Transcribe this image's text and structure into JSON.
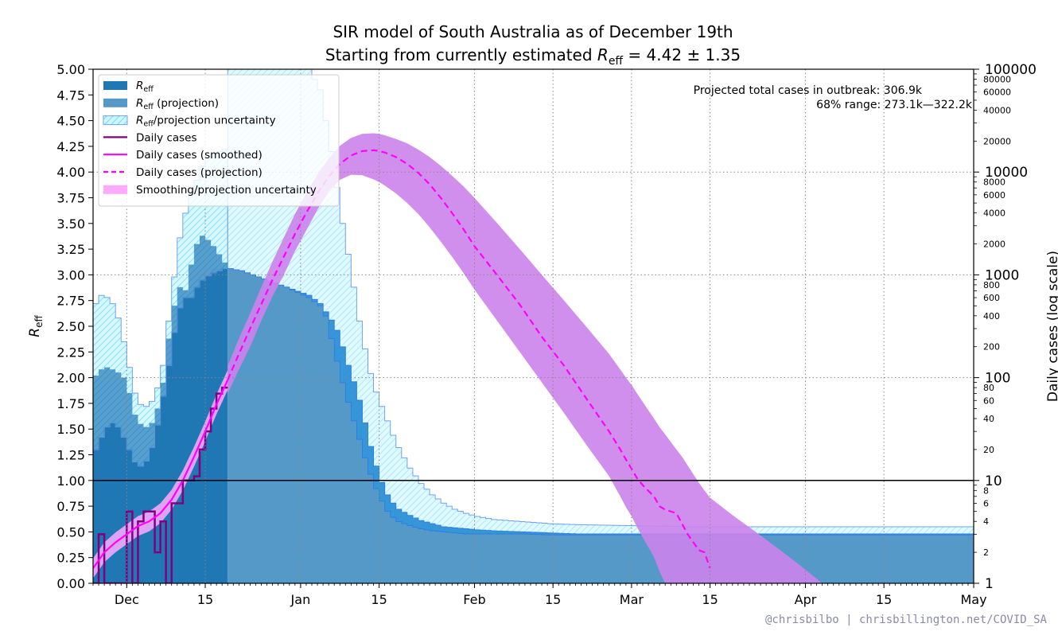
{
  "chart_data": {
    "type": "area",
    "title_line1": "SIR model of South Australia as of December 19th",
    "title_line2_prefix": "Starting from currently estimated ",
    "title_line2_symbol": "R",
    "title_line2_sub": "eff",
    "title_line2_suffix": " = 4.42 ± 1.35",
    "ylabel_left_symbol": "R",
    "ylabel_left_sub": "eff",
    "ylabel_right": "Daily cases (log scale)",
    "x_ticks": [
      {
        "day": 0,
        "label": "Dec"
      },
      {
        "day": 14,
        "label": "15"
      },
      {
        "day": 31,
        "label": "Jan"
      },
      {
        "day": 45,
        "label": "15"
      },
      {
        "day": 62,
        "label": "Feb"
      },
      {
        "day": 76,
        "label": "15"
      },
      {
        "day": 90,
        "label": "Mar"
      },
      {
        "day": 104,
        "label": "15"
      },
      {
        "day": 121,
        "label": "Apr"
      },
      {
        "day": 135,
        "label": "15"
      },
      {
        "day": 151,
        "label": "May"
      }
    ],
    "xlim_day": [
      -6,
      151
    ],
    "ylim_left": [
      0,
      5
    ],
    "y_ticks_left": [
      "0.00",
      "0.25",
      "0.50",
      "0.75",
      "1.00",
      "1.25",
      "1.50",
      "1.75",
      "2.00",
      "2.25",
      "2.50",
      "2.75",
      "3.00",
      "3.25",
      "3.50",
      "3.75",
      "4.00",
      "4.25",
      "4.50",
      "4.75",
      "5.00"
    ],
    "ylim_right_log": [
      1,
      100000
    ],
    "y_major_right": [
      "1",
      "10",
      "100",
      "1000",
      "10000",
      "100000"
    ],
    "y_minor_right": [
      {
        "v": 2,
        "l": "2"
      },
      {
        "v": 4,
        "l": "4"
      },
      {
        "v": 6,
        "l": "6"
      },
      {
        "v": 8,
        "l": "8"
      },
      {
        "v": 20,
        "l": "20"
      },
      {
        "v": 40,
        "l": "40"
      },
      {
        "v": 60,
        "l": "60"
      },
      {
        "v": 80,
        "l": "80"
      },
      {
        "v": 200,
        "l": "200"
      },
      {
        "v": 400,
        "l": "400"
      },
      {
        "v": 600,
        "l": "600"
      },
      {
        "v": 800,
        "l": "800"
      },
      {
        "v": 2000,
        "l": "2000"
      },
      {
        "v": 4000,
        "l": "4000"
      },
      {
        "v": 6000,
        "l": "6000"
      },
      {
        "v": 8000,
        "l": "8000"
      },
      {
        "v": 20000,
        "l": "20000"
      },
      {
        "v": 40000,
        "l": "40000"
      },
      {
        "v": 60000,
        "l": "60000"
      },
      {
        "v": 80000,
        "l": "80000"
      }
    ],
    "reference_line_reff": 1.0,
    "annotation_line1": "Projected total cases in outbreak:  306.9k",
    "annotation_line2": "68% range:  273.1k—322.2k",
    "watermark": "@chrisbilbo | chrisbillington.net/COVID_SA",
    "legend_position": "upper-left",
    "legend": [
      {
        "kind": "patch",
        "color": "#1f77b4",
        "symbol": "R",
        "sub": "eff",
        "text": ""
      },
      {
        "kind": "patch",
        "color": "#5599c9",
        "symbol": "R",
        "sub": "eff",
        "text": " (projection)"
      },
      {
        "kind": "hatch",
        "color": "#ccf8ff",
        "symbol": "R",
        "sub": "eff",
        "text": "/projection uncertainty"
      },
      {
        "kind": "line",
        "color": "#800080",
        "dash": false,
        "text": "Daily cases"
      },
      {
        "kind": "line",
        "color": "#ff00ff",
        "dash": false,
        "text": "Daily cases (smoothed)"
      },
      {
        "kind": "line",
        "color": "#ff00ff",
        "dash": true,
        "text": "Daily cases (projection)"
      },
      {
        "kind": "patch",
        "color": "#ffaaff",
        "text": "Smoothing/projection uncertainty"
      }
    ],
    "colors": {
      "reff": "#1f77b4",
      "reff_projection": "#5599c9",
      "reff_band_edge": "#2e7fe0",
      "uncertainty_hatch_fill": "#ccf8ff",
      "uncertainty_hatch_edge": "#6fa3f0",
      "daily_cases": "#800080",
      "smoothed": "#ff00ff",
      "cases_uncertainty": "#ffaaff",
      "overlap": "#8866d8"
    },
    "reff_series": {
      "name": "Reff",
      "days": [
        -6,
        -5,
        -4,
        -3,
        -2,
        -1,
        0,
        1,
        2,
        3,
        4,
        5,
        6,
        7,
        8,
        9,
        10,
        11,
        12,
        13,
        14,
        15,
        16,
        17
      ],
      "values": [
        2.02,
        2.08,
        2.1,
        2.08,
        2.05,
        2.0,
        1.85,
        1.64,
        1.55,
        1.52,
        1.56,
        1.7,
        1.95,
        2.38,
        2.7,
        2.88,
        2.85,
        3.1,
        3.3,
        3.38,
        3.34,
        3.28,
        3.2,
        3.12
      ],
      "lower": [
        1.3,
        1.42,
        1.52,
        1.56,
        1.52,
        1.42,
        1.3,
        1.18,
        1.14,
        1.19,
        1.32,
        1.54,
        1.82,
        2.12,
        2.44,
        2.68,
        2.78,
        2.78,
        2.88,
        2.95,
        2.99,
        3.02,
        3.04,
        3.06
      ],
      "upper": [
        2.72,
        2.8,
        2.78,
        2.72,
        2.58,
        2.35,
        2.1,
        1.85,
        1.74,
        1.72,
        1.77,
        1.9,
        2.12,
        2.55,
        2.98,
        3.36,
        3.6,
        3.78,
        3.92,
        4.06,
        4.15,
        4.18,
        4.2,
        4.22
      ]
    },
    "reff_projection": {
      "name": "Reff (projection)",
      "days": [
        18,
        20,
        22,
        24,
        26,
        28,
        30,
        32,
        34,
        35,
        36,
        37,
        38,
        39,
        40,
        41,
        42,
        43,
        44,
        45,
        46,
        47,
        48,
        50,
        52,
        54,
        56,
        58,
        60,
        62,
        65,
        70,
        75,
        80,
        90,
        100,
        110,
        120,
        130,
        140,
        151
      ],
      "values": [
        3.06,
        3.04,
        3.0,
        2.96,
        2.92,
        2.88,
        2.83,
        2.78,
        2.7,
        2.64,
        2.56,
        2.46,
        2.3,
        2.12,
        1.96,
        1.78,
        1.56,
        1.33,
        1.14,
        0.98,
        0.86,
        0.78,
        0.72,
        0.66,
        0.61,
        0.58,
        0.55,
        0.54,
        0.53,
        0.52,
        0.51,
        0.5,
        0.49,
        0.48,
        0.48,
        0.48,
        0.48,
        0.48,
        0.48,
        0.48,
        0.48
      ],
      "lower": [
        3.06,
        3.04,
        3.0,
        2.96,
        2.92,
        2.88,
        2.84,
        2.8,
        2.72,
        2.6,
        2.38,
        2.16,
        1.95,
        1.76,
        1.58,
        1.4,
        1.22,
        1.06,
        0.92,
        0.8,
        0.7,
        0.64,
        0.6,
        0.56,
        0.53,
        0.51,
        0.5,
        0.49,
        0.48,
        0.48,
        0.48,
        0.48,
        0.47,
        0.47,
        0.47,
        0.47,
        0.47,
        0.47,
        0.47,
        0.47,
        0.47
      ],
      "upper": [
        5.0,
        5.0,
        5.0,
        5.0,
        5.0,
        5.0,
        5.0,
        5.0,
        4.8,
        4.5,
        4.2,
        3.85,
        3.5,
        3.2,
        2.88,
        2.55,
        2.28,
        2.04,
        1.86,
        1.72,
        1.58,
        1.44,
        1.32,
        1.12,
        0.97,
        0.86,
        0.78,
        0.72,
        0.68,
        0.65,
        0.62,
        0.6,
        0.58,
        0.57,
        0.56,
        0.55,
        0.55,
        0.55,
        0.55,
        0.55,
        0.55
      ]
    },
    "daily_cases": {
      "name": "Daily cases",
      "days": [
        -6,
        -5,
        -4,
        -3,
        -2,
        -1,
        0,
        1,
        2,
        3,
        4,
        5,
        6,
        7,
        8,
        9,
        10,
        11,
        12,
        13,
        14,
        15,
        16,
        17
      ],
      "values": [
        1,
        3,
        1,
        1,
        1,
        1,
        5,
        1,
        4,
        5,
        5,
        2,
        4,
        1,
        6,
        6,
        10,
        10,
        11,
        20,
        30,
        50,
        70,
        80
      ]
    },
    "smoothed_cases": {
      "name": "Daily cases (smoothed)",
      "days": [
        -6,
        -4,
        -2,
        0,
        2,
        4,
        6,
        8,
        10,
        12,
        14,
        16,
        18
      ],
      "values": [
        1.4,
        2.0,
        2.5,
        3.0,
        3.6,
        4.0,
        4.8,
        6.5,
        10,
        17,
        30,
        55,
        95
      ]
    },
    "projected_cases": {
      "name": "Daily cases (projection)",
      "days": [
        18,
        20,
        22,
        24,
        26,
        28,
        30,
        32,
        34,
        36,
        38,
        40,
        42,
        44,
        45,
        46,
        48,
        50,
        52,
        54,
        56,
        58,
        60,
        62,
        66,
        70,
        74,
        78,
        82,
        86,
        88,
        89,
        90,
        91,
        92,
        94,
        95,
        96,
        98,
        99,
        100,
        102,
        103,
        104
      ],
      "values": [
        95,
        170,
        300,
        520,
        900,
        1500,
        2500,
        4000,
        6200,
        9000,
        12000,
        14500,
        16000,
        16300,
        16000,
        15500,
        14000,
        12000,
        9800,
        7600,
        5600,
        4000,
        2800,
        1900,
        1000,
        520,
        250,
        130,
        62,
        30,
        20,
        16,
        13,
        10.5,
        9,
        7,
        5.6,
        5.2,
        4.8,
        3.8,
        3.0,
        2.1,
        2.0,
        1.4
      ],
      "lower": [
        70,
        120,
        200,
        360,
        620,
        1000,
        1700,
        2700,
        4300,
        6400,
        8400,
        9400,
        9300,
        8500,
        8000,
        7400,
        6200,
        5000,
        3900,
        2900,
        2100,
        1500,
        1050,
        720,
        360,
        180,
        90,
        45,
        22,
        11,
        7,
        5.5,
        4.5,
        3.5,
        2.8,
        1.8,
        1.3,
        1.0,
        1.0,
        1.0,
        1.0,
        1.0,
        1.0,
        1.0
      ],
      "upper": [
        130,
        240,
        420,
        760,
        1350,
        2300,
        3900,
        6200,
        9500,
        13500,
        18000,
        21500,
        23500,
        23800,
        23500,
        22800,
        21000,
        19000,
        16500,
        14000,
        11500,
        9200,
        7300,
        5600,
        3200,
        1800,
        1000,
        560,
        310,
        170,
        120,
        100,
        85,
        70,
        58,
        40,
        33,
        28,
        20,
        17,
        14,
        9.5,
        8,
        6.8
      ]
    },
    "projected_cases_tail_upper": {
      "days": [
        104,
        108,
        112,
        116,
        120,
        124
      ],
      "values": [
        6.8,
        4.6,
        3.2,
        2.2,
        1.5,
        1.0
      ]
    }
  }
}
